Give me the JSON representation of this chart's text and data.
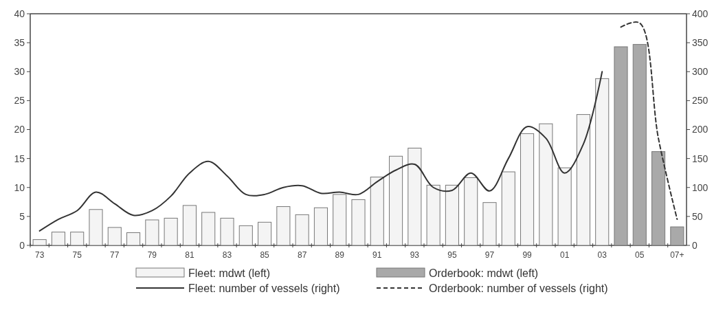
{
  "chart_data": {
    "type": "bar",
    "categories": [
      "73",
      null,
      "75",
      null,
      "77",
      null,
      "79",
      null,
      "81",
      null,
      "83",
      null,
      "85",
      null,
      "87",
      null,
      "89",
      null,
      "91",
      null,
      "93",
      null,
      "95",
      null,
      "97",
      null,
      "99",
      null,
      "01",
      null,
      "03",
      null,
      "05",
      null,
      "07+"
    ],
    "series": [
      {
        "name": "Fleet: mdwt (left)",
        "color": "#f4f4f4",
        "values": [
          1.0,
          2.3,
          2.3,
          6.2,
          3.1,
          2.2,
          4.4,
          4.7,
          6.9,
          5.7,
          4.7,
          3.4,
          4.0,
          6.7,
          5.3,
          6.5,
          8.8,
          7.9,
          11.8,
          15.4,
          16.8,
          10.4,
          10.4,
          11.7,
          7.4,
          12.7,
          19.3,
          21.0,
          13.4,
          22.6,
          28.8,
          null,
          null,
          null,
          null
        ]
      },
      {
        "name": "Orderbook: mdwt (left)",
        "color": "#a9a9a9",
        "values": [
          null,
          null,
          null,
          null,
          null,
          null,
          null,
          null,
          null,
          null,
          null,
          null,
          null,
          null,
          null,
          null,
          null,
          null,
          null,
          null,
          null,
          null,
          null,
          null,
          null,
          null,
          null,
          null,
          null,
          null,
          null,
          34.3,
          34.7,
          16.2,
          3.2
        ]
      },
      {
        "name": "Fleet: number of vessels (right)",
        "type": "line",
        "axis": "y2",
        "line_style": "solid",
        "color": "#333333",
        "values": [
          25,
          45,
          60,
          92,
          72,
          52,
          60,
          85,
          125,
          145,
          120,
          88,
          88,
          100,
          103,
          90,
          92,
          88,
          110,
          130,
          140,
          100,
          95,
          125,
          94,
          150,
          205,
          185,
          125,
          175,
          300,
          null,
          null,
          null,
          null
        ]
      },
      {
        "name": "Orderbook: number of vessels (right)",
        "type": "line",
        "axis": "y2",
        "line_style": "dashed",
        "color": "#333333",
        "values": [
          null,
          null,
          null,
          null,
          null,
          null,
          null,
          null,
          null,
          null,
          null,
          null,
          null,
          null,
          null,
          null,
          null,
          null,
          null,
          null,
          null,
          null,
          null,
          null,
          null,
          null,
          null,
          null,
          null,
          null,
          null,
          377,
          384,
          185,
          45
        ]
      }
    ],
    "ylim": [
      0,
      40
    ],
    "yticks": [
      0,
      5,
      10,
      15,
      20,
      25,
      30,
      35,
      40
    ],
    "y2lim": [
      0,
      400
    ],
    "y2ticks": [
      0,
      50,
      100,
      150,
      200,
      250,
      300,
      350,
      400
    ],
    "legend": "bottom"
  }
}
